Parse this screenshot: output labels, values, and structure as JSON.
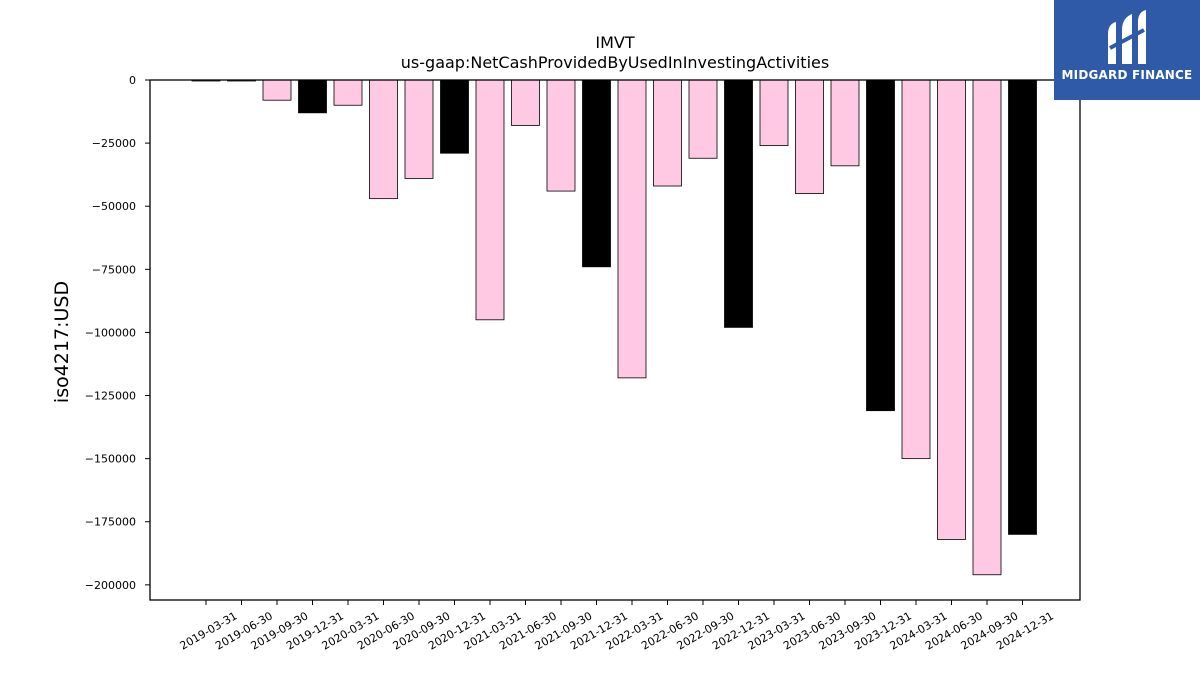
{
  "brand": {
    "name": "MIDGARD FINANCE",
    "bg_color": "#2f5aa8"
  },
  "chart_data": {
    "type": "bar",
    "title": "IMVT",
    "subtitle": "us-gaap:NetCashProvidedByUsedInInvestingActivities",
    "xlabel": "",
    "ylabel": "iso4217:USD",
    "ylim": [
      -206000,
      0
    ],
    "yticks": [
      0,
      -25000,
      -50000,
      -75000,
      -100000,
      -125000,
      -150000,
      -175000,
      -200000
    ],
    "grid": false,
    "colors": {
      "quarter": "#ffc9e3",
      "year_end": "#000000",
      "edge": "#000000"
    },
    "categories": [
      "2019-03-31",
      "2019-06-30",
      "2019-09-30",
      "2019-12-31",
      "2020-03-31",
      "2020-06-30",
      "2020-09-30",
      "2020-12-31",
      "2021-03-31",
      "2021-06-30",
      "2021-09-30",
      "2021-12-31",
      "2022-03-31",
      "2022-06-30",
      "2022-09-30",
      "2022-12-31",
      "2023-03-31",
      "2023-06-30",
      "2023-09-30",
      "2023-12-31",
      "2024-03-31",
      "2024-06-30",
      "2024-09-30",
      "2024-12-31"
    ],
    "values": [
      -100,
      -100,
      -8000,
      -13000,
      -10000,
      -47000,
      -39000,
      -29000,
      -95000,
      -18000,
      -44000,
      -74000,
      -118000,
      -42000,
      -31000,
      -98000,
      -26000,
      -45000,
      -34000,
      -131000,
      -150000,
      -182000,
      -196000,
      -180000
    ],
    "year_end": [
      false,
      false,
      false,
      true,
      false,
      false,
      false,
      true,
      false,
      false,
      false,
      true,
      false,
      false,
      false,
      true,
      false,
      false,
      false,
      true,
      false,
      false,
      false,
      true
    ]
  }
}
